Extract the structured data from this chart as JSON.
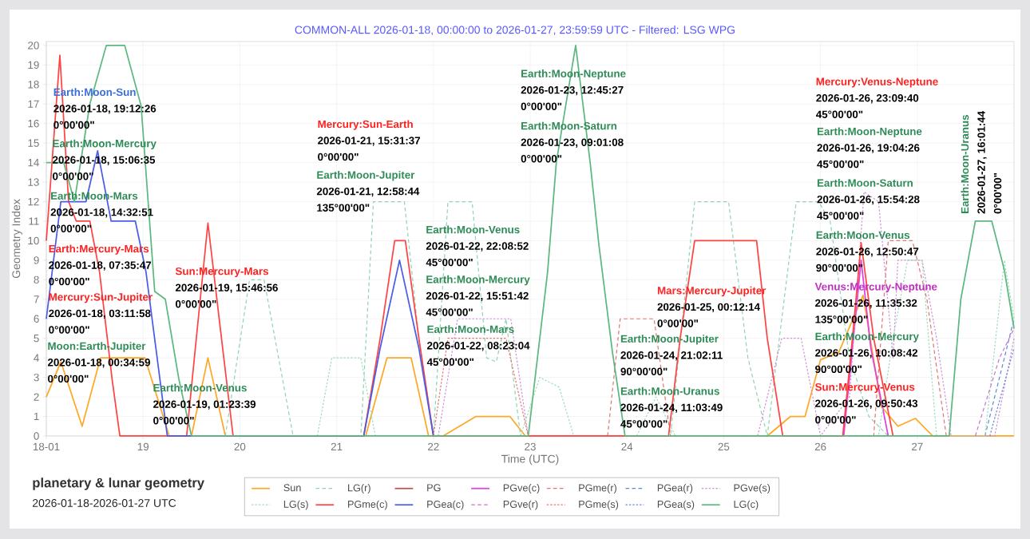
{
  "chart_data": {
    "type": "line",
    "title": "COMMON-ALL 2026-01-18, 00:00:00 to 2026-01-27, 23:59:59 UTC - Filtered: LSG WPG",
    "subtitle": "planetary & lunar geometry",
    "xlabel": "Time (UTC)",
    "ylabel": "Geometry Index",
    "xlim": [
      18,
      28
    ],
    "ylim": [
      0,
      20.2
    ],
    "xticks": [
      {
        "value": 18,
        "label": "18-01"
      },
      19,
      20,
      21,
      22,
      23,
      24,
      25,
      26,
      27
    ],
    "yticks": [
      0,
      1,
      2,
      3,
      4,
      5,
      6,
      7,
      8,
      9,
      10,
      11,
      12,
      13,
      14,
      15,
      16,
      17,
      18,
      19,
      20
    ],
    "grid": true,
    "legend": "bottom",
    "series": [
      {
        "name": "Sun",
        "color": "#ffa726",
        "line_style": "solid",
        "x": [
          18,
          18.15,
          18.37,
          18.56,
          19.02,
          19.27,
          19.5,
          19.67,
          19.85,
          21.3,
          21.52,
          21.77,
          21.95,
          22.1,
          22.44,
          22.79,
          22.95,
          25.45,
          25.69,
          25.84,
          26.0,
          26.19,
          26.44,
          26.63,
          26.8,
          26.98,
          27.16,
          28
        ],
        "values": [
          2,
          3.8,
          0.5,
          4,
          4,
          0,
          0,
          4,
          0,
          0,
          4,
          4,
          0,
          0,
          1,
          1,
          0,
          0,
          1,
          1,
          3.9,
          4.3,
          7.2,
          1.5,
          0.5,
          0.9,
          0,
          0
        ]
      },
      {
        "name": "LG(r)",
        "color": "#8fd4b0",
        "line_style": "dashed",
        "x": [
          19.85,
          20.1,
          20.25,
          20.55,
          21.25,
          21.38,
          21.7,
          21.85,
          22.0,
          22.15,
          22.4,
          22.55,
          22.65,
          22.75,
          22.9,
          24.45,
          24.7,
          25.05,
          25.25,
          25.45,
          25.75,
          25.98,
          26.1,
          26.3,
          26.5,
          26.7
        ],
        "values": [
          0,
          8,
          8,
          0,
          0,
          12,
          12,
          5,
          0,
          12,
          12,
          4,
          3.8,
          6,
          0,
          0,
          12,
          12,
          4,
          0,
          12,
          12,
          11,
          4,
          1,
          0
        ]
      },
      {
        "name": "PG",
        "color": "#c0504d",
        "line_style": "solid"
      },
      {
        "name": "PGve(c)",
        "color": "#e040e0",
        "line_style": "solid",
        "x": [
          26.24,
          26.33,
          26.42,
          26.52,
          26.7
        ],
        "values": [
          0,
          4.5,
          9,
          4.5,
          0
        ]
      },
      {
        "name": "PGme(r)",
        "color": "#e57373",
        "line_style": "dashed",
        "x": [
          23.8,
          23.93,
          24.28,
          24.45,
          26.55,
          26.7,
          26.95,
          27.1,
          27.3
        ],
        "values": [
          0,
          6,
          6,
          0,
          0,
          10,
          10,
          7,
          0
        ]
      },
      {
        "name": "PGea(r)",
        "color": "#5b8bd6",
        "line_style": "dashed",
        "x": [
          27.7,
          28
        ],
        "values": [
          0,
          6
        ]
      },
      {
        "name": "PGve(s)",
        "color": "#ce93d8",
        "line_style": "dotted",
        "x": [
          22.05,
          22.25,
          22.8,
          22.98,
          25.35,
          25.6,
          25.8,
          26.0,
          26.3,
          26.45,
          26.6,
          26.75,
          26.8,
          27.05,
          27.2,
          27.35,
          27.8,
          28
        ],
        "values": [
          0,
          6,
          6,
          0,
          0,
          5,
          5,
          0,
          2,
          12.5,
          12,
          4,
          9,
          9,
          5,
          0,
          0,
          5
        ]
      },
      {
        "name": "LG(s)",
        "color": "#9fdcbc",
        "line_style": "dotted",
        "x": [
          20.8,
          20.95,
          21.25,
          21.4,
          22.9,
          23.1,
          23.3,
          23.45,
          24.1,
          24.3,
          24.5,
          26.6,
          26.75,
          26.9,
          27.05,
          27.2,
          27.7,
          27.9,
          28
        ],
        "values": [
          0,
          4,
          4,
          0,
          0,
          3,
          2.5,
          0,
          0,
          2,
          0,
          0,
          5,
          9,
          9,
          0,
          0,
          9,
          6
        ]
      },
      {
        "name": "PGme(c)",
        "color": "#ff4444",
        "line_style": "solid",
        "x": [
          18,
          18.14,
          18.23,
          18.31,
          18.45,
          18.55,
          18.68,
          18.76,
          19.45,
          19.55,
          19.67,
          19.81,
          19.93,
          21.28,
          21.45,
          21.6,
          21.71,
          21.85,
          22.0,
          24.43,
          24.55,
          24.7,
          25.34,
          25.45,
          25.61,
          26.23,
          26.33,
          26.42,
          26.55,
          26.75
        ],
        "values": [
          10,
          19.5,
          12,
          11,
          11,
          8.4,
          2.9,
          0,
          0,
          5,
          10.9,
          5,
          0,
          0,
          5,
          10,
          10,
          5,
          0,
          0,
          5,
          10,
          10,
          5,
          0,
          0,
          5,
          9.9,
          5,
          0
        ]
      },
      {
        "name": "PGea(c)",
        "color": "#4a5ce8",
        "line_style": "solid",
        "x": [
          18,
          18.15,
          18.41,
          18.53,
          18.67,
          18.92,
          19.03,
          19.25,
          21.28,
          21.45,
          21.65,
          21.85,
          22.0
        ],
        "values": [
          6,
          12,
          12,
          14.6,
          11,
          11,
          8.4,
          0,
          0,
          4.5,
          9,
          4.5,
          0
        ]
      },
      {
        "name": "PGve(r)",
        "color": "#d070d0",
        "line_style": "dashed",
        "x": [
          27.6,
          27.85,
          28
        ],
        "values": [
          0,
          4,
          5.5
        ]
      },
      {
        "name": "PGme(s)",
        "color": "#ef6f6f",
        "line_style": "dotted",
        "x": [
          22.0,
          22.15,
          22.75,
          22.98
        ],
        "values": [
          0,
          5,
          5,
          0
        ]
      },
      {
        "name": "PGea(s)",
        "color": "#6a8ad8",
        "line_style": "dotted",
        "x": [
          27.75,
          28
        ],
        "values": [
          0,
          4.5
        ]
      },
      {
        "name": "LG(c)",
        "color": "#5cb87f",
        "line_style": "solid",
        "x": [
          18,
          18.18,
          18.29,
          18.45,
          18.62,
          18.81,
          18.98,
          19.12,
          19.23,
          19.37,
          19.5,
          22.98,
          23.18,
          23.27,
          23.47,
          23.62,
          23.71,
          23.85,
          23.98,
          27.33,
          27.45,
          27.6,
          27.77,
          27.9,
          28
        ],
        "values": [
          14,
          14,
          12,
          17,
          20,
          20,
          16.9,
          7.4,
          7,
          2.9,
          0,
          0,
          8.4,
          14,
          20,
          14,
          9.8,
          4.3,
          0,
          0,
          7,
          11,
          11,
          8.5,
          5.5
        ]
      }
    ],
    "annotations": [
      "2026-01-18-2026-01-27 UTC",
      "Earth:Moon-Sun",
      "2026-01-18, 19:12:26",
      "0°00'00\"",
      "Earth:Moon-Mercury",
      "2026-01-18, 15:06:35",
      "0°00'00\"",
      "Earth:Moon-Mars",
      "2026-01-18, 14:32:51",
      "0°00'00\"",
      "Earth:Mercury-Mars",
      "2026-01-18, 07:35:47",
      "0°00'00\"",
      "Mercury:Sun-Jupiter",
      "2026-01-18, 03:11:58",
      "0°00'00\"",
      "Moon:Earth-Jupiter",
      "2026-01-18, 00:34:59",
      "0°00'00\"",
      "Earth:Moon-Venus",
      "2026-01-19, 01:23:39",
      "0°00'00\"",
      "Sun:Mercury-Mars",
      "2026-01-19, 15:46:56",
      "0°00'00\"",
      "Mercury:Sun-Earth",
      "2026-01-21, 15:31:37",
      "0°00'00\"",
      "Earth:Moon-Jupiter",
      "2026-01-21, 12:58:44",
      "135°00'00\"",
      "Earth:Moon-Venus",
      "2026-01-22, 22:08:52",
      "45°00'00\"",
      "Earth:Moon-Mercury",
      "2026-01-22, 15:51:42",
      "45°00'00\"",
      "Earth:Moon-Mars",
      "2026-01-22, 08:23:04",
      "45°00'00\"",
      "Earth:Moon-Neptune",
      "2026-01-23, 12:45:27",
      "0°00'00\"",
      "Earth:Moon-Saturn",
      "2026-01-23, 09:01:08",
      "0°00'00\"",
      "Mars:Mercury-Jupiter",
      "2026-01-25, 00:12:14",
      "0°00'00\"",
      "Earth:Moon-Jupiter",
      "2026-01-24, 21:02:11",
      "90°00'00\"",
      "Earth:Moon-Uranus",
      "2026-01-24, 11:03:49",
      "45°00'00\"",
      "Mercury:Venus-Neptune",
      "2026-01-26, 23:09:40",
      "45°00'00\"",
      "Earth:Moon-Neptune",
      "2026-01-26, 19:04:26",
      "45°00'00\"",
      "Earth:Moon-Saturn",
      "2026-01-26, 15:54:28",
      "45°00'00\"",
      "Earth:Moon-Venus",
      "2026-01-26, 12:50:47",
      "90°00'00\"",
      "Venus:Mercury-Neptune",
      "2026-01-26, 11:35:32",
      "135°00'00\"",
      "Earth:Moon-Mercury",
      "2026-01-26, 10:08:42",
      "90°00'00\"",
      "Sun:Mercury-Venus",
      "2026-01-26, 09:50:43",
      "0°00'00\"",
      "Earth:Moon-Uranus",
      "2026-01-27, 16:01:44",
      "0°00'00\""
    ]
  }
}
